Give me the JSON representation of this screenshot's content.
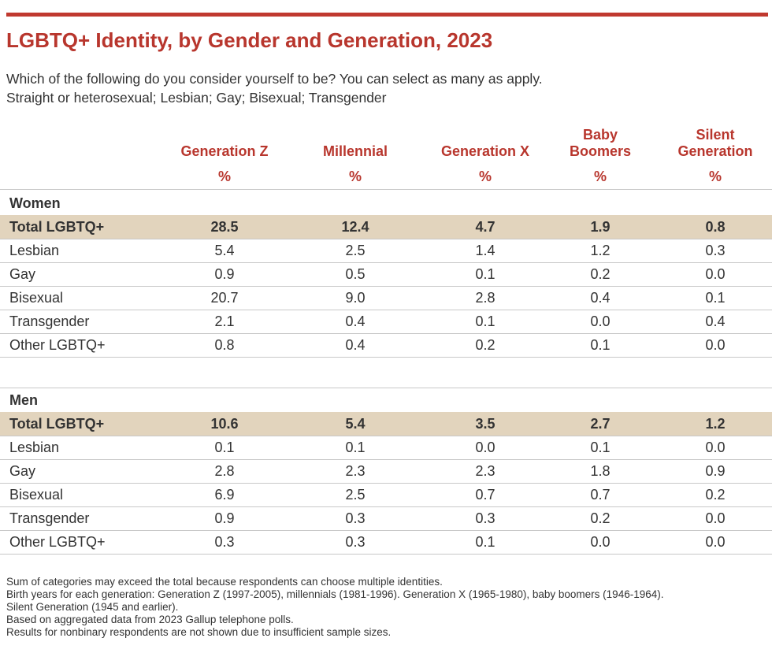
{
  "header": {
    "title": "LGBTQ+ Identity, by Gender and Generation, 2023",
    "subtitle": [
      "Which of the following do you consider yourself to be? You can select as many as apply.",
      "Straight or heterosexual; Lesbian; Gay; Bisexual; Transgender"
    ]
  },
  "table": {
    "columns": [
      {
        "name": [
          "Generation Z"
        ],
        "unit": "%"
      },
      {
        "name": [
          "Millennial"
        ],
        "unit": "%"
      },
      {
        "name": [
          "Generation X"
        ],
        "unit": "%"
      },
      {
        "name": [
          "Baby",
          "Boomers"
        ],
        "unit": "%"
      },
      {
        "name": [
          "Silent",
          "Generation"
        ],
        "unit": "%"
      }
    ],
    "sections": [
      {
        "label": "Women",
        "rows": [
          [
            "Total LGBTQ+",
            "28.5",
            "12.4",
            "4.7",
            "1.9",
            "0.8"
          ],
          [
            "Lesbian",
            "5.4",
            "2.5",
            "1.4",
            "1.2",
            "0.3"
          ],
          [
            "Gay",
            "0.9",
            "0.5",
            "0.1",
            "0.2",
            "0.0"
          ],
          [
            "Bisexual",
            "20.7",
            "9.0",
            "2.8",
            "0.4",
            "0.1"
          ],
          [
            "Transgender",
            "2.1",
            "0.4",
            "0.1",
            "0.0",
            "0.4"
          ],
          [
            "Other LGBTQ+",
            "0.8",
            "0.4",
            "0.2",
            "0.1",
            "0.0"
          ]
        ]
      },
      {
        "label": "Men",
        "rows": [
          [
            "Total LGBTQ+",
            "10.6",
            "5.4",
            "3.5",
            "2.7",
            "1.2"
          ],
          [
            "Lesbian",
            "0.1",
            "0.1",
            "0.0",
            "0.1",
            "0.0"
          ],
          [
            "Gay",
            "2.8",
            "2.3",
            "2.3",
            "1.8",
            "0.9"
          ],
          [
            "Bisexual",
            "6.9",
            "2.5",
            "0.7",
            "0.7",
            "0.2"
          ],
          [
            "Transgender",
            "0.9",
            "0.3",
            "0.3",
            "0.2",
            "0.0"
          ],
          [
            "Other LGBTQ+",
            "0.3",
            "0.3",
            "0.1",
            "0.0",
            "0.0"
          ]
        ]
      }
    ]
  },
  "notes": [
    "Sum of categories may exceed the total because respondents can choose multiple identities.",
    "Birth years for each generation: Generation Z (1997-2005), millennials (1981-1996). Generation X (1965-1980), baby boomers (1946-1964).",
    "Silent Generation (1945 and earlier).",
    "Based on aggregated data from 2023 Gallup telephone polls.",
    "Results for nonbinary respondents are not shown due to insufficient sample sizes."
  ]
}
